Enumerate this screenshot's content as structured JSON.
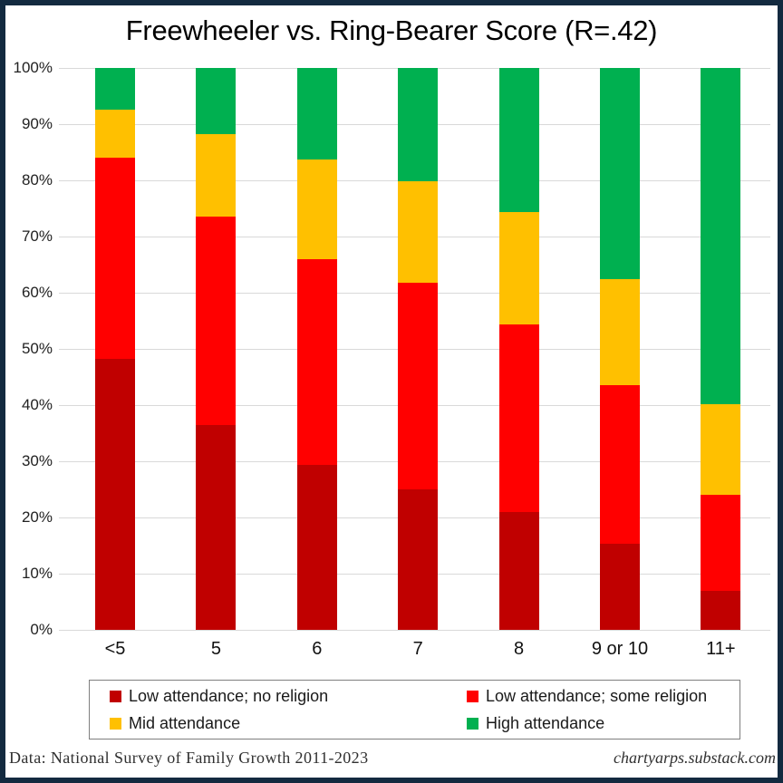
{
  "title": "Freewheeler vs. Ring-Bearer Score (R=.42)",
  "footer": {
    "source": "Data: National Survey of Family Growth 2011-2023",
    "credit": "chartyarps.substack.com"
  },
  "colors": {
    "frame_border": "#132a40",
    "gridline": "#d9d9d9",
    "legend_border": "#7f7f7f",
    "dark_red": "#C00000",
    "red": "#FF0000",
    "gold": "#FFC000",
    "green": "#00B050"
  },
  "chart_data": {
    "type": "bar",
    "stacked": true,
    "title": "Freewheeler vs. Ring-Bearer Score (R=.42)",
    "categories": [
      "<5",
      "5",
      "6",
      "7",
      "8",
      "9 or 10",
      "11+"
    ],
    "series": [
      {
        "name": "Low attendance; no religion",
        "color": "#C00000",
        "values": [
          48.2,
          36.4,
          29.4,
          25.0,
          20.9,
          15.4,
          7.0
        ]
      },
      {
        "name": "Low attendance; some religion",
        "color": "#FF0000",
        "values": [
          35.8,
          37.1,
          36.6,
          36.7,
          33.4,
          28.2,
          17.1
        ]
      },
      {
        "name": "Mid attendance",
        "color": "#FFC000",
        "values": [
          8.6,
          14.7,
          17.7,
          18.1,
          20.1,
          18.8,
          16.1
        ]
      },
      {
        "name": "High attendance",
        "color": "#00B050",
        "values": [
          7.4,
          11.8,
          16.3,
          20.2,
          25.6,
          37.6,
          59.8
        ]
      }
    ],
    "y_ticks": [
      "0%",
      "10%",
      "20%",
      "30%",
      "40%",
      "50%",
      "60%",
      "70%",
      "80%",
      "90%",
      "100%"
    ],
    "ylim": [
      0,
      100
    ],
    "grid": true,
    "legend_position": "bottom",
    "xlabel": "",
    "ylabel": ""
  }
}
